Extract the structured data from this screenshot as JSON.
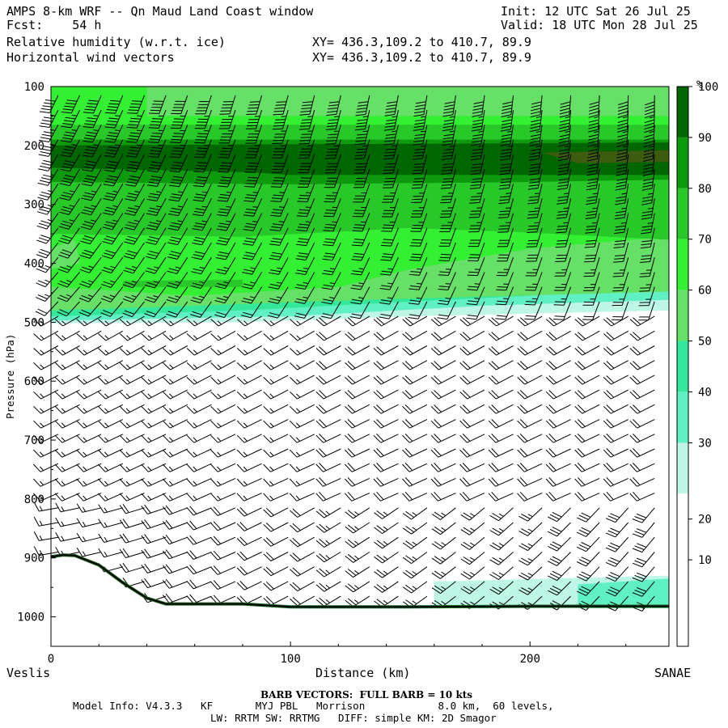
{
  "header": {
    "title": "AMPS 8-km WRF -- Qn Maud Land Coast window",
    "fcst": "Fcst:    54 h",
    "init": "Init: 12 UTC Sat 26 Jul 25",
    "valid": "Valid: 18 UTC Mon 28 Jul 25",
    "field1": "Relative humidity (w.r.t. ice)",
    "field2": "Horizontal wind vectors",
    "xy1": "XY= 436.3,109.2 to 410.7, 89.9",
    "xy2": "XY= 436.3,109.2 to 410.7, 89.9"
  },
  "footer": {
    "barb_note": "BARB VECTORS:  FULL BARB = 10 kts",
    "model_info": "Model Info: V4.3.3   KF       MYJ PBL   Morrison            8.0 km,  60 levels,",
    "physics": "LW: RRTM SW: RRTMG   DIFF: simple KM: 2D Smagor"
  },
  "chart_data": {
    "type": "heatmap",
    "title": "Relative humidity (w.r.t. ice)",
    "xlabel": "Distance (km)",
    "ylabel": "Pressure (hPa)",
    "xlim": [
      0,
      258
    ],
    "ylim": [
      1050,
      100
    ],
    "x_ticks": [
      0,
      100,
      200
    ],
    "y_ticks": [
      100,
      200,
      300,
      400,
      500,
      600,
      700,
      800,
      900,
      1000
    ],
    "x_endpoints": {
      "left": "Veslis",
      "right": "SANAE"
    },
    "colorbar": {
      "unit": "%",
      "tick_labels": [
        "10",
        "20",
        "30",
        "40",
        "50",
        "60",
        "70",
        "80",
        "90",
        "100"
      ],
      "levels": [
        0,
        30,
        40,
        50,
        60,
        70,
        80,
        90,
        100,
        110
      ],
      "colors": [
        "#ffffff",
        "#bff7e6",
        "#5ff0c3",
        "#33e89a",
        "#66e066",
        "#33f033",
        "#28c828",
        "#0d9a0d",
        "#006600",
        "#3d5c0f"
      ]
    },
    "bands": [
      {
        "range": "100-150 hPa",
        "rh": "50-70 %"
      },
      {
        "range": "150-195 hPa",
        "rh": "70-80 %"
      },
      {
        "range": "195-265 hPa",
        "rh": "90-100 %"
      },
      {
        "range": "265-350 hPa",
        "rh": "80-90 %"
      },
      {
        "range": "350-470 hPa",
        "rh": "60-80 %"
      },
      {
        "range": "470-500 hPa",
        "rh": "30-60 %"
      },
      {
        "range": "500-960 hPa",
        "rh": "< 30 %"
      }
    ],
    "terrain": [
      [
        0,
        898
      ],
      [
        5,
        895
      ],
      [
        10,
        896
      ],
      [
        20,
        912
      ],
      [
        30,
        942
      ],
      [
        40,
        968
      ],
      [
        48,
        978
      ],
      [
        60,
        978
      ],
      [
        80,
        978
      ],
      [
        100,
        983
      ],
      [
        150,
        983
      ],
      [
        200,
        982
      ],
      [
        258,
        982
      ]
    ],
    "wind_columns_km": [
      3,
      12,
      21,
      30,
      39,
      48,
      57,
      67,
      77,
      88,
      99,
      110,
      121,
      133,
      145,
      157,
      169,
      181,
      193,
      205,
      217,
      229,
      241,
      252
    ],
    "wind_levels_hpa": [
      115,
      140,
      165,
      190,
      215,
      240,
      265,
      290,
      315,
      340,
      365,
      390,
      415,
      440,
      465,
      490,
      515,
      540,
      565,
      590,
      615,
      640,
      665,
      690,
      715,
      740,
      765,
      790,
      815,
      840,
      865,
      890,
      915,
      940,
      965
    ]
  }
}
